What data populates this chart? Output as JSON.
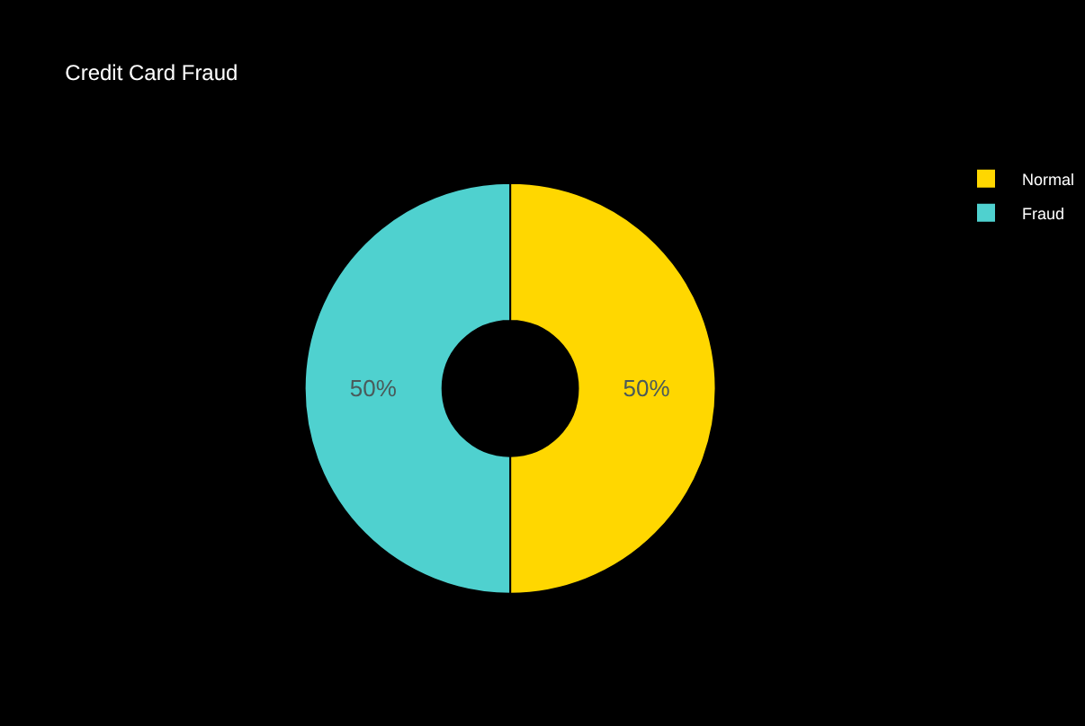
{
  "chart_data": {
    "type": "donut",
    "title": "Credit Card Fraud",
    "categories": [
      "Normal",
      "Fraud"
    ],
    "values": [
      50,
      50
    ],
    "colors": [
      "#ffd700",
      "#4fd1cf"
    ],
    "value_labels": [
      "50%",
      "50%"
    ],
    "legend": "top right"
  }
}
